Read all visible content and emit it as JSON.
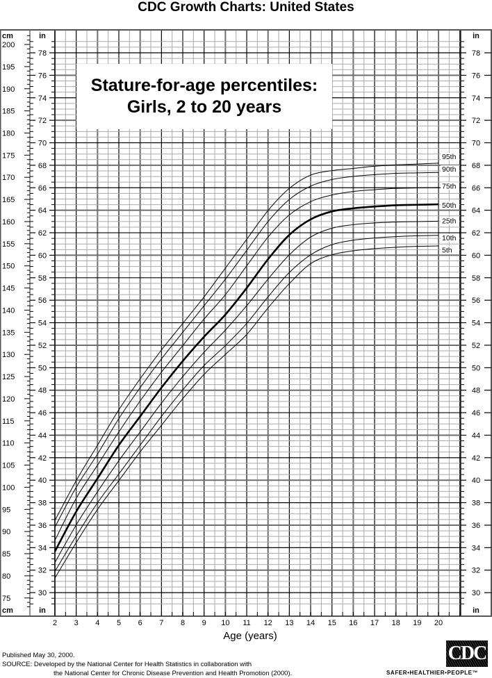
{
  "header": {
    "title": "CDC Growth Charts: United States"
  },
  "chart_box": {
    "line1": "Stature-for-age percentiles:",
    "line2": "Girls, 2 to 20 years"
  },
  "axes": {
    "left_unit_cm": "cm",
    "left_unit_in": "in",
    "right_unit_in": "in",
    "x_title": "Age (years)"
  },
  "footer": {
    "published": "Published May 30, 2000.",
    "source_line1": "SOURCE: Developed by the National Center for Health Statistics in collaboration with",
    "source_line2": "the National Center for Chronic Disease Prevention and Health Promotion (2000).",
    "logo_text": "CDC",
    "tagline": "SAFER•HEALTHIER•PEOPLE™"
  },
  "chart_data": {
    "type": "line",
    "title": "Stature-for-age percentiles: Girls, 2 to 20 years",
    "xlabel": "Age (years)",
    "ylabel": "Stature (cm / in)",
    "x": [
      2,
      3,
      4,
      5,
      6,
      7,
      8,
      9,
      10,
      11,
      12,
      13,
      14,
      15,
      16,
      17,
      18,
      19,
      20
    ],
    "xlim": [
      2,
      21
    ],
    "ylim_cm": [
      73,
      202
    ],
    "ylim_in": [
      29,
      79
    ],
    "cm_ticks": [
      75,
      80,
      85,
      90,
      95,
      100,
      105,
      110,
      115,
      120,
      125,
      130,
      135,
      140,
      145,
      150,
      155,
      160,
      165,
      170,
      175,
      180,
      185,
      190,
      195,
      200
    ],
    "in_ticks": [
      30,
      32,
      34,
      36,
      38,
      40,
      42,
      44,
      46,
      48,
      50,
      52,
      54,
      56,
      58,
      60,
      62,
      64,
      66,
      68,
      70,
      72,
      74,
      76,
      78
    ],
    "grid": true,
    "series": [
      {
        "name": "95th",
        "width": 1,
        "values_cm": [
          92.5,
          101.5,
          109.5,
          117.5,
          124.5,
          131.0,
          137.0,
          143.0,
          149.5,
          156.0,
          162.5,
          167.5,
          170.5,
          171.5,
          172.0,
          172.5,
          172.8,
          173.0,
          173.2
        ]
      },
      {
        "name": "90th",
        "width": 1,
        "values_cm": [
          91.0,
          100.0,
          107.5,
          115.5,
          122.5,
          129.0,
          135.0,
          141.0,
          147.0,
          153.5,
          160.0,
          165.0,
          168.0,
          169.5,
          170.2,
          170.6,
          170.9,
          171.0,
          171.1
        ]
      },
      {
        "name": "75th",
        "width": 1,
        "values_cm": [
          88.0,
          97.5,
          105.0,
          112.5,
          119.5,
          126.0,
          132.0,
          138.0,
          143.5,
          150.0,
          156.5,
          161.5,
          164.5,
          166.0,
          166.8,
          167.2,
          167.5,
          167.6,
          167.7
        ]
      },
      {
        "name": "50th",
        "width": 2.6,
        "values_cm": [
          85.5,
          94.5,
          102.0,
          109.5,
          116.0,
          122.5,
          128.5,
          134.0,
          139.0,
          145.0,
          151.5,
          157.0,
          160.5,
          162.3,
          163.0,
          163.4,
          163.7,
          163.8,
          163.9
        ]
      },
      {
        "name": "25th",
        "width": 1,
        "values_cm": [
          83.0,
          91.5,
          99.0,
          106.0,
          112.5,
          119.0,
          125.0,
          130.5,
          135.5,
          141.0,
          147.0,
          152.5,
          156.5,
          158.5,
          159.3,
          159.7,
          159.9,
          160.0,
          160.1
        ]
      },
      {
        "name": "10th",
        "width": 1,
        "values_cm": [
          81.0,
          89.0,
          96.5,
          103.0,
          109.5,
          116.0,
          122.0,
          127.5,
          132.0,
          137.0,
          143.0,
          148.5,
          152.5,
          154.8,
          155.8,
          156.3,
          156.6,
          156.8,
          156.9
        ]
      },
      {
        "name": "5th",
        "width": 1,
        "values_cm": [
          79.5,
          87.5,
          95.0,
          101.5,
          108.0,
          114.0,
          120.0,
          125.5,
          130.0,
          134.5,
          140.5,
          146.0,
          150.5,
          152.5,
          153.4,
          153.9,
          154.2,
          154.4,
          154.5
        ]
      }
    ],
    "label_in_positions": {
      "95th": 68.6,
      "90th": 67.5,
      "75th": 66.0,
      "50th": 64.3,
      "25th": 62.9,
      "10th": 61.4,
      "5th": 60.3
    }
  }
}
